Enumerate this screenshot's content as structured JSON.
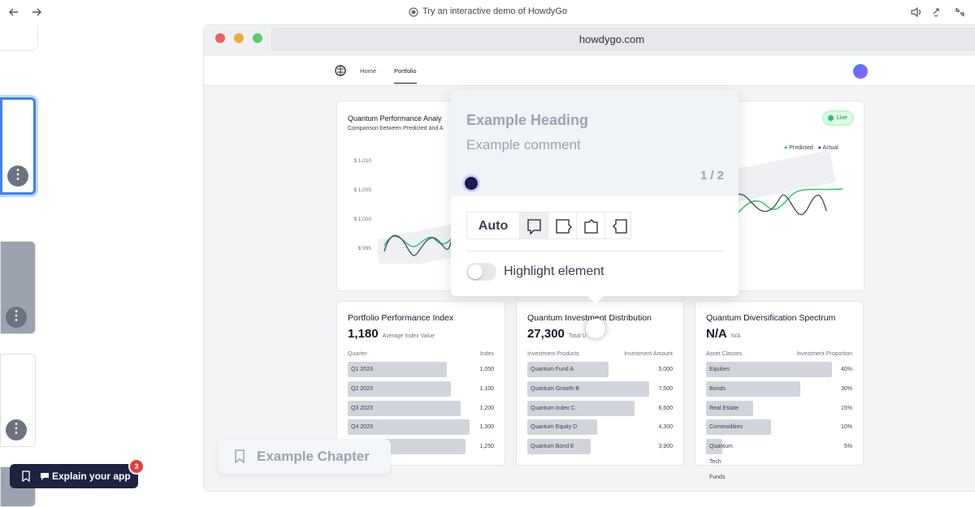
{
  "top_bar": {
    "title": "Try an interactive demo of HowdyGo"
  },
  "browser": {
    "url": "howdygo.com"
  },
  "nav": {
    "items": [
      "Home",
      "Portfolio"
    ]
  },
  "performance_card": {
    "title": "Quantum Performance Analy",
    "subtitle": "Comparison between Predicted and A",
    "badge": "Live",
    "legend": [
      "Predicted",
      "Actual"
    ],
    "y_labels": [
      "$ 1,010",
      "$ 1,005",
      "$ 1,000",
      "$ 995"
    ]
  },
  "popup": {
    "heading": "Example Heading",
    "comment": "Example comment",
    "counter": "1 / 2",
    "auto": "Auto",
    "toggle_label": "Highlight element"
  },
  "cards": [
    {
      "title": "Portfolio Performance Index",
      "value": "1,180",
      "caption": "Average Index Value",
      "columns": [
        "Quarter",
        "Index"
      ],
      "rows": [
        [
          "Q1 2023",
          "1,050"
        ],
        [
          "Q2 2023",
          "1,100"
        ],
        [
          "Q3 2023",
          "1,200"
        ],
        [
          "Q4 2023",
          "1,300"
        ],
        [
          null,
          "1,250"
        ]
      ]
    },
    {
      "title": "Quantum Investment Distribution",
      "value": "27,300",
      "caption": "Total U",
      "columns": [
        "Investment Products",
        "Investment Amount"
      ],
      "rows": [
        [
          "Quantum Fund A",
          "5,000"
        ],
        [
          "Quantum Growth B",
          "7,500"
        ],
        [
          "Quantum Index C",
          "6,600"
        ],
        [
          "Quantum Equity D",
          "4,300"
        ],
        [
          "Quantum Bond E",
          "3,900"
        ]
      ]
    },
    {
      "title": "Quantum Diversification Spectrum",
      "value": "N/A",
      "caption": "N/A",
      "columns": [
        "Asset Classes",
        "Investment Proportion"
      ],
      "rows": [
        [
          "Equities",
          "40%"
        ],
        [
          "Bonds",
          "30%"
        ],
        [
          "Real Estate",
          "15%"
        ],
        [
          "Commodities",
          "10%"
        ],
        [
          "Quantum Tech Funds",
          "5%"
        ]
      ]
    }
  ],
  "chapter": {
    "label": "Example Chapter"
  },
  "explain_button": {
    "label": "Explain your app",
    "badge": "3"
  }
}
